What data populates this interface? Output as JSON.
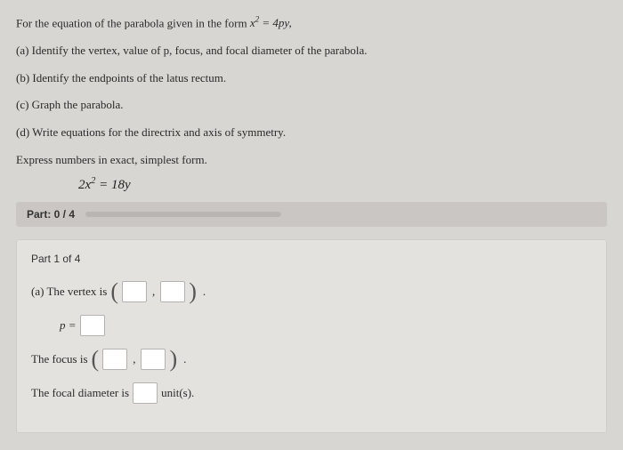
{
  "problem": {
    "intro_before": "For the equation of the parabola given in the form ",
    "intro_formula_html": "x<span class='sup'>2</span> = 4py,",
    "line_a": "(a) Identify the vertex, value of p, focus, and focal diameter of the parabola.",
    "line_b": "(b) Identify the endpoints of the latus rectum.",
    "line_c": "(c) Graph the parabola.",
    "line_d": "(d) Write equations for the directrix and axis of symmetry.",
    "express": "Express numbers in exact, simplest form.",
    "equation_html": "2x<span class='sup'>2</span> = 18y"
  },
  "progress": {
    "label": "Part: 0 / 4",
    "value": 0,
    "max": 4,
    "track_color": "#b8b5b2",
    "bar_bg": "#c9c6c3"
  },
  "part1": {
    "header": "Part 1 of 4",
    "vertex_label": "(a) The vertex is ",
    "p_label": "p = ",
    "focus_label": "The focus is ",
    "focal_label_before": "The focal diameter is ",
    "focal_label_after": " unit(s)."
  },
  "style": {
    "page_bg": "#d8d6d3",
    "panel_bg": "#e4e2df",
    "panel_border": "#cfccc9",
    "input_bg": "#ffffff",
    "input_border": "#b5b2af",
    "text_color": "#2a2a2a"
  }
}
